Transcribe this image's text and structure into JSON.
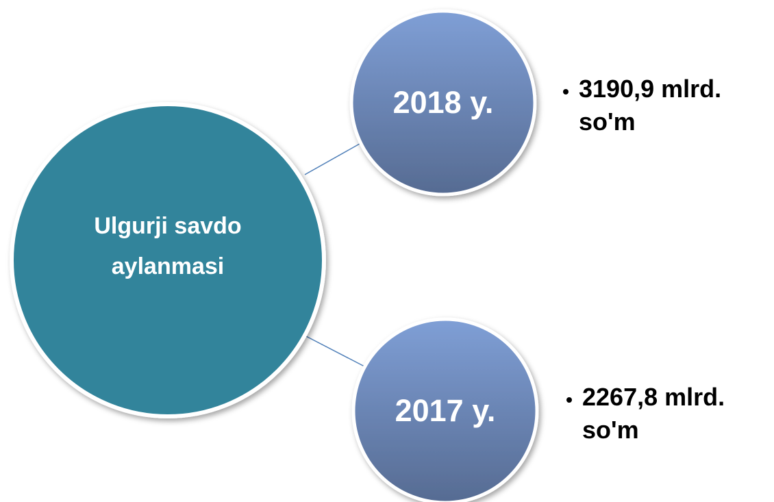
{
  "nodes": [
    {
      "label": "Ulgurji savdo aylanmasi"
    },
    {
      "label": "2018 y.",
      "detail": "3190,9 mlrd. so'm"
    },
    {
      "label": "2017 y.",
      "detail": "2267,8 mlrd. so'm"
    }
  ]
}
